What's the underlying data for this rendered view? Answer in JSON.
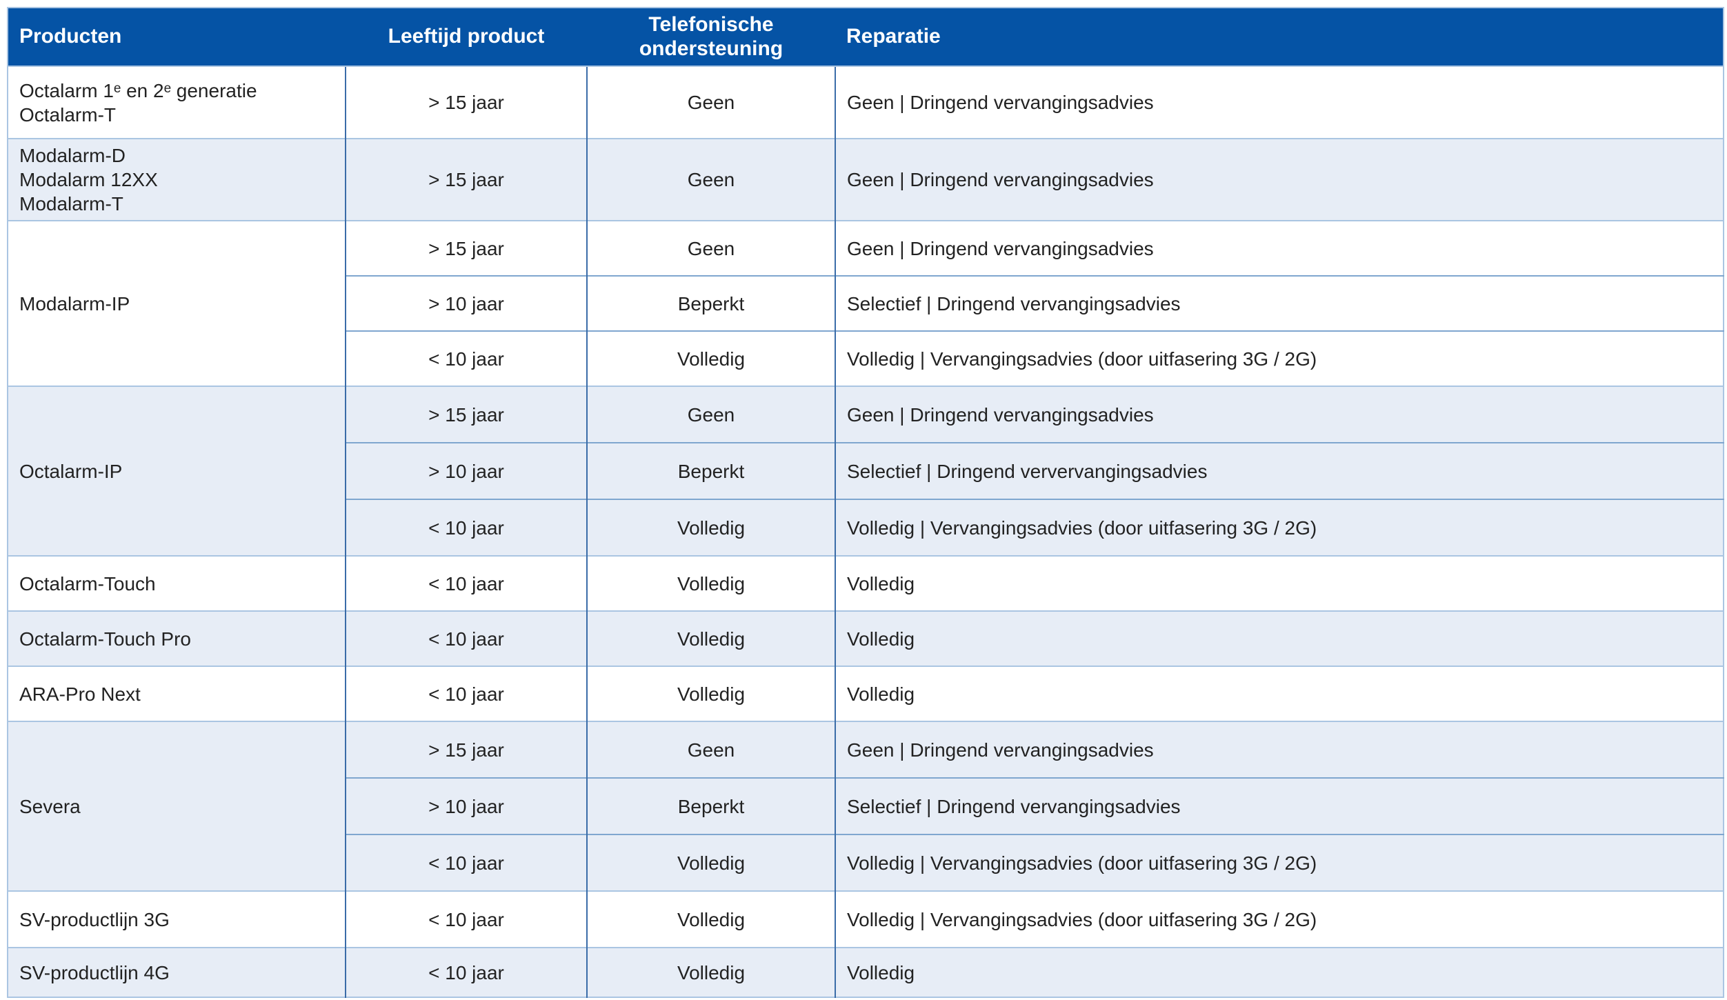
{
  "colors": {
    "header_bg": "#0553a5",
    "row_alt_bg": "#e7edf6",
    "border_vertical": "#3a6ca8",
    "border_subrow": "#7fa6cf",
    "border_group": "#aac5e2",
    "text_color": "#222222"
  },
  "header": {
    "columns": [
      {
        "label": "Producten"
      },
      {
        "label": "Leeftijd product"
      },
      {
        "label": "Telefonische ondersteuning"
      },
      {
        "label": "Reparatie"
      }
    ]
  },
  "groups": [
    {
      "product_lines": [
        "Octalarm 1ᵉ en 2ᵉ generatie",
        "Octalarm-T"
      ],
      "rows": [
        {
          "age": "> 15 jaar",
          "support": "Geen",
          "repair": "Geen | Dringend vervangingsadvies"
        }
      ]
    },
    {
      "product_lines": [
        "Modalarm-D",
        "Modalarm 12XX",
        "Modalarm-T"
      ],
      "rows": [
        {
          "age": "> 15 jaar",
          "support": "Geen",
          "repair": "Geen | Dringend vervangingsadvies"
        }
      ]
    },
    {
      "product_lines": [
        "Modalarm-IP"
      ],
      "rows": [
        {
          "age": "> 15 jaar",
          "support": "Geen",
          "repair": "Geen | Dringend vervangingsadvies"
        },
        {
          "age": "> 10 jaar",
          "support": "Beperkt",
          "repair": "Selectief | Dringend vervangingsadvies"
        },
        {
          "age": "< 10 jaar",
          "support": "Volledig",
          "repair": "Volledig | Vervangingsadvies (door uitfasering 3G / 2G)"
        }
      ]
    },
    {
      "product_lines": [
        "Octalarm-IP"
      ],
      "rows": [
        {
          "age": "> 15 jaar",
          "support": "Geen",
          "repair": "Geen | Dringend vervangingsadvies"
        },
        {
          "age": "> 10 jaar",
          "support": "Beperkt",
          "repair": "Selectief | Dringend ververvangingsadvies"
        },
        {
          "age": "< 10 jaar",
          "support": "Volledig",
          "repair": "Volledig | Vervangingsadvies (door uitfasering 3G / 2G)"
        }
      ]
    },
    {
      "product_lines": [
        "Octalarm-Touch"
      ],
      "rows": [
        {
          "age": "< 10 jaar",
          "support": "Volledig",
          "repair": "Volledig"
        }
      ]
    },
    {
      "product_lines": [
        "Octalarm-Touch Pro"
      ],
      "rows": [
        {
          "age": "< 10 jaar",
          "support": "Volledig",
          "repair": "Volledig"
        }
      ]
    },
    {
      "product_lines": [
        "ARA-Pro Next"
      ],
      "rows": [
        {
          "age": "< 10 jaar",
          "support": "Volledig",
          "repair": "Volledig"
        }
      ]
    },
    {
      "product_lines": [
        "Severa"
      ],
      "rows": [
        {
          "age": "> 15 jaar",
          "support": "Geen",
          "repair": "Geen | Dringend vervangingsadvies"
        },
        {
          "age": "> 10 jaar",
          "support": "Beperkt",
          "repair": "Selectief | Dringend vervangingsadvies"
        },
        {
          "age": "< 10 jaar",
          "support": "Volledig",
          "repair": "Volledig | Vervangingsadvies (door uitfasering 3G / 2G)"
        }
      ]
    },
    {
      "product_lines": [
        "SV-productlijn 3G"
      ],
      "rows": [
        {
          "age": "< 10 jaar",
          "support": "Volledig",
          "repair": "Volledig | Vervangingsadvies (door uitfasering 3G / 2G)"
        }
      ]
    },
    {
      "product_lines": [
        "SV-productlijn 4G"
      ],
      "rows": [
        {
          "age": "< 10 jaar",
          "support": "Volledig",
          "repair": "Volledig"
        }
      ]
    }
  ]
}
